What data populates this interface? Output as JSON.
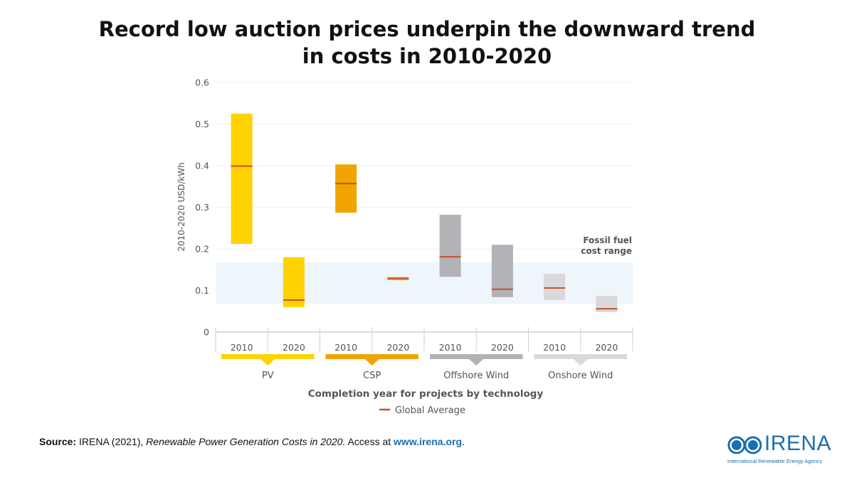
{
  "title_line1": "Record low auction prices underpin the downward trend",
  "title_line2": "in costs in 2010-2020",
  "chart_data": {
    "type": "bar",
    "subtype": "floating-range-with-average",
    "title": "Record low auction prices underpin the downward trend in costs in 2010-2020",
    "ylabel": "2010-2020 USD/kWh",
    "xlabel": "Completion year for projects by technology",
    "ylim": [
      0,
      0.6
    ],
    "yticks": [
      "0",
      "0.1",
      "0.2",
      "0.3",
      "0.4",
      "0.5",
      "0.6"
    ],
    "ytick_values": [
      0,
      0.1,
      0.2,
      0.3,
      0.4,
      0.5,
      0.6
    ],
    "grid": true,
    "legend": [
      {
        "label": "Global Average",
        "color": "#c9502a",
        "placement": "bottom-center"
      }
    ],
    "groups": [
      {
        "name": "PV",
        "color": "#ffd200",
        "bars": [
          {
            "year": "2010",
            "low": 0.212,
            "high": 0.525,
            "avg": 0.399
          },
          {
            "year": "2020",
            "low": 0.06,
            "high": 0.18,
            "avg": 0.077
          }
        ]
      },
      {
        "name": "CSP",
        "color": "#f0a500",
        "bars": [
          {
            "year": "2010",
            "low": 0.287,
            "high": 0.403,
            "avg": 0.357
          },
          {
            "year": "2020",
            "low": 0.125,
            "high": 0.132,
            "avg": 0.129
          }
        ]
      },
      {
        "name": "Offshore Wind",
        "color": "#b2b2b7",
        "bars": [
          {
            "year": "2010",
            "low": 0.133,
            "high": 0.282,
            "avg": 0.181
          },
          {
            "year": "2020",
            "low": 0.084,
            "high": 0.21,
            "avg": 0.103
          }
        ]
      },
      {
        "name": "Onshore Wind",
        "color": "#d9d9dc",
        "bars": [
          {
            "year": "2010",
            "low": 0.077,
            "high": 0.14,
            "avg": 0.106
          },
          {
            "year": "2020",
            "low": 0.048,
            "high": 0.087,
            "avg": 0.056
          }
        ]
      }
    ],
    "band": {
      "label_line1": "Fossil fuel",
      "label_line2": "cost range",
      "low": 0.068,
      "high": 0.167,
      "color": "#eef5fb"
    },
    "avg_color": "#c9502a"
  },
  "source": {
    "label": "Source:",
    "text1": " IRENA (2021), ",
    "italic": "Renewable Power Generation Costs in 2020.",
    "text2": " Access at ",
    "link": "www.irena.org",
    "end": "."
  },
  "logo": {
    "name": "IRENA",
    "subtitle": "International Renewable Energy Agency",
    "color": "#1a6fb0"
  }
}
